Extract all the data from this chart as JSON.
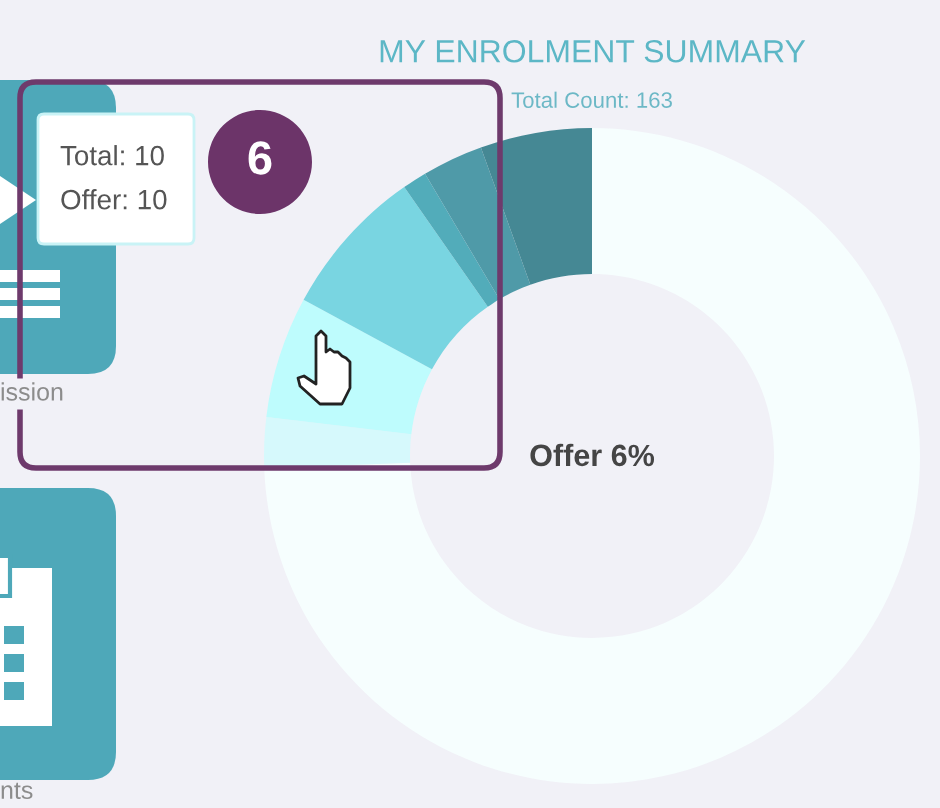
{
  "chart_data": {
    "type": "donut",
    "title": "MY ENROLMENT SUMMARY",
    "subtitle": "Total Count: 163",
    "categories": [
      null,
      null,
      null,
      null,
      null,
      null,
      null
    ],
    "values": [
      74.4,
      2.5,
      6,
      7.4,
      1.2,
      3,
      5.5
    ],
    "colors": [
      "#f6fefe",
      "#d6f9fc",
      "#befcfd",
      "#79d5e1",
      "#52acba",
      "#4f9aa8",
      "#458894"
    ],
    "annotations": [
      "Offer 6%",
      "Total: 10",
      "Offer: 10",
      "6",
      "ission",
      "nts"
    ]
  }
}
